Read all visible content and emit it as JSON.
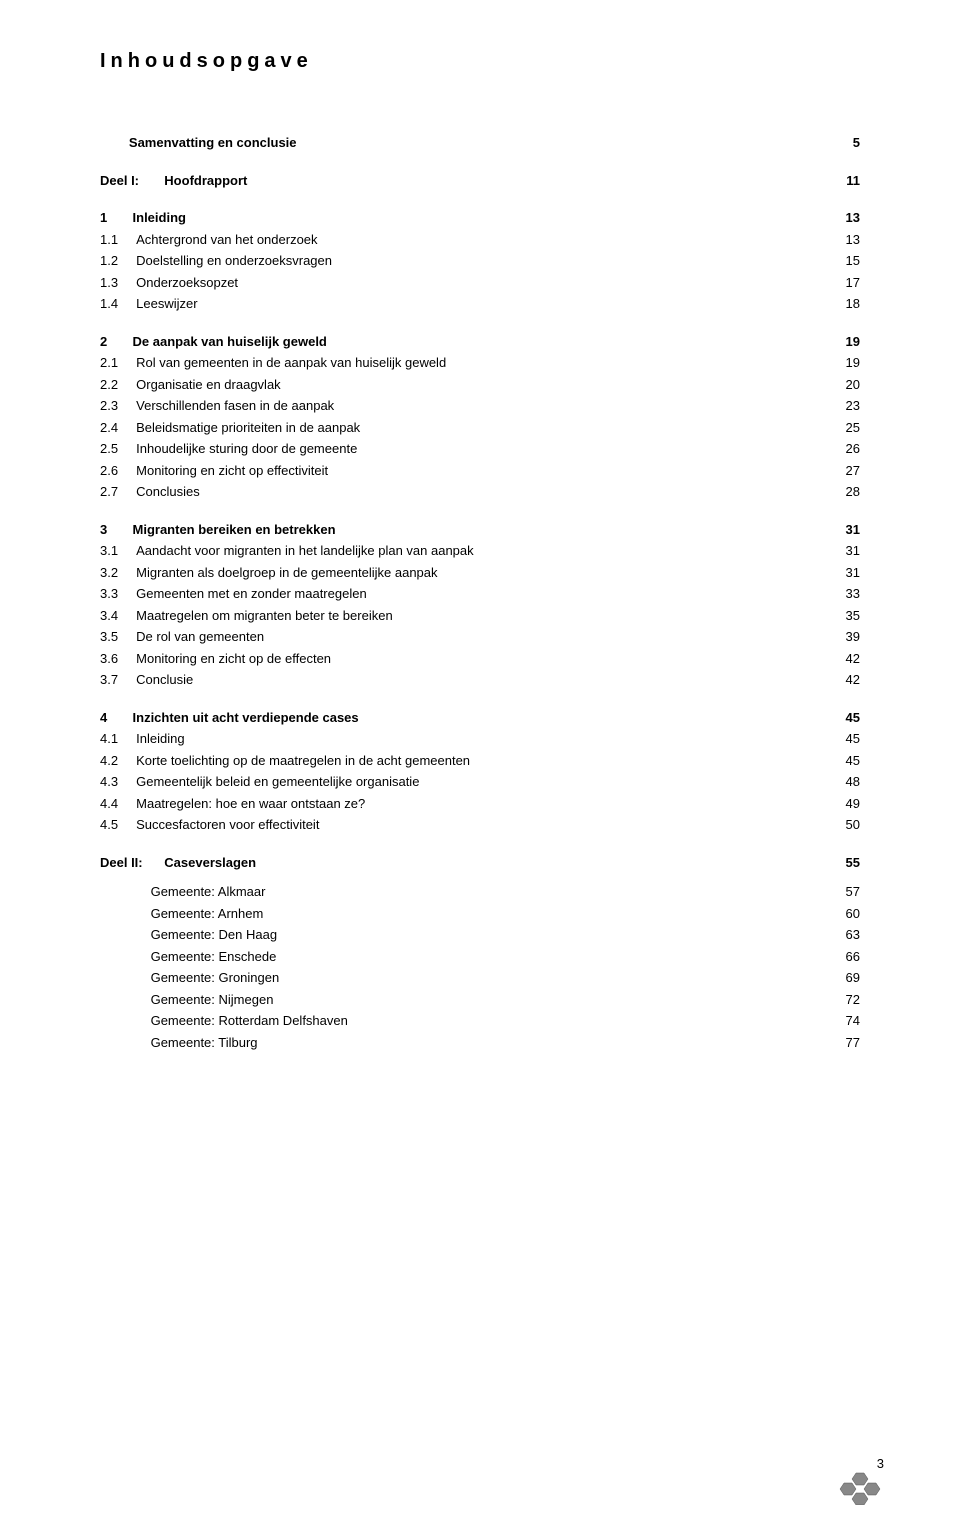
{
  "title": "Inhoudsopgave",
  "page_number": "3",
  "colors": {
    "text": "#000000",
    "background": "#ffffff",
    "logo_fill": "#888888",
    "logo_stroke": "#555555"
  },
  "typography": {
    "font_family": "Verdana, Geneva, sans-serif",
    "title_fontsize": 20,
    "title_letterspacing": 5,
    "body_fontsize": 13
  },
  "groups": [
    {
      "rows": [
        {
          "num": "",
          "label": "Samenvatting en conclusie",
          "page": "5",
          "bold": true
        }
      ]
    },
    {
      "rows": [
        {
          "num": "Deel I:",
          "label": "Hoofdrapport",
          "page": "11",
          "bold": true,
          "part": true
        }
      ]
    },
    {
      "rows": [
        {
          "num": "1",
          "label": "Inleiding",
          "page": "13",
          "bold": true
        },
        {
          "num": "1.1",
          "label": "Achtergrond van het onderzoek",
          "page": "13"
        },
        {
          "num": "1.2",
          "label": "Doelstelling en onderzoeksvragen",
          "page": "15"
        },
        {
          "num": "1.3",
          "label": "Onderzoeksopzet",
          "page": "17"
        },
        {
          "num": "1.4",
          "label": "Leeswijzer",
          "page": "18"
        }
      ]
    },
    {
      "rows": [
        {
          "num": "2",
          "label": "De aanpak van huiselijk geweld",
          "page": "19",
          "bold": true
        },
        {
          "num": "2.1",
          "label": "Rol van gemeenten in de aanpak van huiselijk geweld",
          "page": "19"
        },
        {
          "num": "2.2",
          "label": "Organisatie en draagvlak",
          "page": "20"
        },
        {
          "num": "2.3",
          "label": "Verschillenden fasen in de aanpak",
          "page": "23"
        },
        {
          "num": "2.4",
          "label": "Beleidsmatige prioriteiten in de aanpak",
          "page": "25"
        },
        {
          "num": "2.5",
          "label": "Inhoudelijke sturing door de gemeente",
          "page": "26"
        },
        {
          "num": "2.6",
          "label": "Monitoring en zicht op effectiviteit",
          "page": "27"
        },
        {
          "num": "2.7",
          "label": "Conclusies",
          "page": "28"
        }
      ]
    },
    {
      "rows": [
        {
          "num": "3",
          "label": "Migranten bereiken en betrekken",
          "page": "31",
          "bold": true
        },
        {
          "num": "3.1",
          "label": "Aandacht voor migranten in het landelijke plan van aanpak",
          "page": "31"
        },
        {
          "num": "3.2",
          "label": "Migranten als doelgroep in de gemeentelijke aanpak",
          "page": "31"
        },
        {
          "num": "3.3",
          "label": "Gemeenten met en zonder maatregelen",
          "page": "33"
        },
        {
          "num": "3.4",
          "label": "Maatregelen om migranten beter te bereiken",
          "page": "35"
        },
        {
          "num": "3.5",
          "label": "De rol van gemeenten",
          "page": "39"
        },
        {
          "num": "3.6",
          "label": "Monitoring en zicht op de effecten",
          "page": "42"
        },
        {
          "num": "3.7",
          "label": "Conclusie",
          "page": "42"
        }
      ]
    },
    {
      "rows": [
        {
          "num": "4",
          "label": "Inzichten uit acht verdiepende cases",
          "page": "45",
          "bold": true
        },
        {
          "num": "4.1",
          "label": "Inleiding",
          "page": "45"
        },
        {
          "num": "4.2",
          "label": "Korte toelichting op de maatregelen in de acht gemeenten",
          "page": "45"
        },
        {
          "num": "4.3",
          "label": "Gemeentelijk beleid en gemeentelijke organisatie",
          "page": "48"
        },
        {
          "num": "4.4",
          "label": "Maatregelen: hoe en waar ontstaan ze?",
          "page": "49"
        },
        {
          "num": "4.5",
          "label": "Succesfactoren voor effectiviteit",
          "page": "50"
        }
      ]
    },
    {
      "rows": [
        {
          "num": "Deel II:",
          "label": "Caseverslagen",
          "page": "55",
          "bold": true,
          "part": true
        },
        {
          "num": "",
          "label": "Gemeente: Alkmaar",
          "page": "57",
          "indent": true
        },
        {
          "num": "",
          "label": "Gemeente: Arnhem",
          "page": "60",
          "indent": true
        },
        {
          "num": "",
          "label": "Gemeente: Den Haag",
          "page": "63",
          "indent": true
        },
        {
          "num": "",
          "label": "Gemeente: Enschede",
          "page": "66",
          "indent": true
        },
        {
          "num": "",
          "label": "Gemeente: Groningen",
          "page": "69",
          "indent": true
        },
        {
          "num": "",
          "label": "Gemeente: Nijmegen",
          "page": "72",
          "indent": true
        },
        {
          "num": "",
          "label": "Gemeente: Rotterdam Delfshaven",
          "page": "74",
          "indent": true
        },
        {
          "num": "",
          "label": "Gemeente: Tilburg",
          "page": "77",
          "indent": true
        }
      ]
    }
  ]
}
